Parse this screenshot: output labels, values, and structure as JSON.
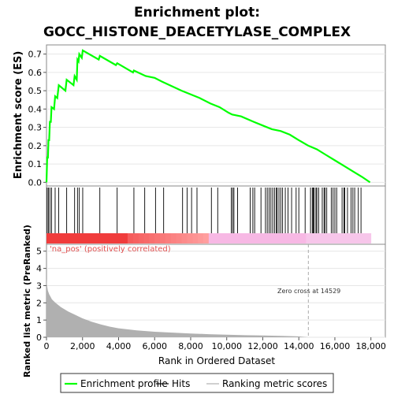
{
  "chart_data": {
    "type": "line",
    "title_line1": "Enrichment plot:",
    "title_line2": "GOCC_HISTONE_DEACETYLASE_COMPLEX",
    "panels": {
      "es": {
        "ylabel": "Enrichment score (ES)",
        "ylim": [
          -0.02,
          0.75
        ],
        "yticks": [
          0.0,
          0.1,
          0.2,
          0.3,
          0.4,
          0.5,
          0.6,
          0.7
        ],
        "ytick_labels": [
          "0.0",
          "0.1",
          "0.2",
          "0.3",
          "0.4",
          "0.5",
          "0.6",
          "0.7"
        ],
        "series_color": "#00ff00",
        "es_curve": [
          [
            0,
            0.0
          ],
          [
            40,
            0.14
          ],
          [
            80,
            0.13
          ],
          [
            110,
            0.23
          ],
          [
            150,
            0.23
          ],
          [
            190,
            0.33
          ],
          [
            240,
            0.33
          ],
          [
            280,
            0.41
          ],
          [
            420,
            0.4
          ],
          [
            480,
            0.47
          ],
          [
            600,
            0.46
          ],
          [
            680,
            0.53
          ],
          [
            1050,
            0.5
          ],
          [
            1120,
            0.56
          ],
          [
            1500,
            0.53
          ],
          [
            1560,
            0.58
          ],
          [
            1680,
            0.56
          ],
          [
            1720,
            0.67
          ],
          [
            1780,
            0.66
          ],
          [
            1820,
            0.7
          ],
          [
            1960,
            0.68
          ],
          [
            2010,
            0.72
          ],
          [
            2900,
            0.67
          ],
          [
            2960,
            0.69
          ],
          [
            3850,
            0.64
          ],
          [
            3920,
            0.65
          ],
          [
            4800,
            0.6
          ],
          [
            4850,
            0.61
          ],
          [
            5500,
            0.58
          ],
          [
            6000,
            0.57
          ],
          [
            6400,
            0.55
          ],
          [
            7500,
            0.5
          ],
          [
            8500,
            0.46
          ],
          [
            9100,
            0.43
          ],
          [
            9600,
            0.41
          ],
          [
            10100,
            0.38
          ],
          [
            10300,
            0.37
          ],
          [
            10800,
            0.36
          ],
          [
            11500,
            0.33
          ],
          [
            12000,
            0.31
          ],
          [
            12500,
            0.29
          ],
          [
            13000,
            0.28
          ],
          [
            13500,
            0.26
          ],
          [
            14000,
            0.23
          ],
          [
            14529,
            0.2
          ],
          [
            15000,
            0.18
          ],
          [
            15500,
            0.15
          ],
          [
            16000,
            0.12
          ],
          [
            16500,
            0.09
          ],
          [
            17000,
            0.06
          ],
          [
            17500,
            0.03
          ],
          [
            17950,
            0.0
          ]
        ]
      },
      "hits": {
        "positions": [
          40,
          110,
          190,
          280,
          480,
          680,
          1120,
          1560,
          1720,
          1820,
          2010,
          2960,
          3920,
          4850,
          5450,
          6050,
          6500,
          7550,
          7800,
          8050,
          8350,
          9150,
          9500,
          10250,
          10330,
          10400,
          10600,
          11300,
          11450,
          11550,
          11900,
          12150,
          12250,
          12350,
          12450,
          12550,
          12650,
          12750,
          12800,
          12900,
          13000,
          13100,
          13250,
          13400,
          13600,
          13850,
          14000,
          14350,
          14650,
          14750,
          14800,
          14850,
          14950,
          15000,
          15100,
          15300,
          15400,
          15450,
          15550,
          15800,
          15900,
          16000,
          16100,
          16400,
          16500,
          16550,
          16700,
          16900,
          17000,
          17100,
          17300,
          17450
        ]
      },
      "metric": {
        "ylabel": "Ranked list metric (PreRanked)",
        "ylim": [
          0,
          5.4
        ],
        "yticks": [
          0,
          1,
          2,
          3,
          4,
          5
        ],
        "ytick_labels": [
          "0",
          "1",
          "2",
          "3",
          "4",
          "5"
        ],
        "fill_color": "#b0b0b0",
        "pos_label": "'na_pos' (positively correlated)",
        "zero_cross_label": "Zero cross at 14529",
        "zero_cross": 14529,
        "metric_curve": [
          [
            0,
            3.4
          ],
          [
            30,
            3.0
          ],
          [
            80,
            2.7
          ],
          [
            150,
            2.5
          ],
          [
            300,
            2.2
          ],
          [
            500,
            2.0
          ],
          [
            800,
            1.75
          ],
          [
            1200,
            1.5
          ],
          [
            1600,
            1.3
          ],
          [
            2000,
            1.1
          ],
          [
            2500,
            0.9
          ],
          [
            3000,
            0.75
          ],
          [
            3500,
            0.62
          ],
          [
            4000,
            0.52
          ],
          [
            5000,
            0.4
          ],
          [
            6000,
            0.32
          ],
          [
            7000,
            0.27
          ],
          [
            8000,
            0.22
          ],
          [
            9000,
            0.18
          ],
          [
            10000,
            0.15
          ],
          [
            11000,
            0.12
          ],
          [
            12000,
            0.1
          ],
          [
            13000,
            0.08
          ],
          [
            14000,
            0.05
          ],
          [
            14529,
            0.0
          ]
        ]
      }
    },
    "xlabel": "Rank in Ordered Dataset",
    "xlim": [
      0,
      18800
    ],
    "n_genes": 18000,
    "xticks": [
      0,
      2000,
      4000,
      6000,
      8000,
      10000,
      12000,
      14000,
      16000,
      18000
    ],
    "xtick_labels": [
      "0",
      "2,000",
      "4,000",
      "6,000",
      "8,000",
      "10,000",
      "12,000",
      "14,000",
      "16,000",
      "18,000"
    ],
    "legend": {
      "placement": "bottom",
      "items": [
        {
          "label": "Enrichment profile",
          "kind": "line",
          "color": "#00ff00"
        },
        {
          "label": "Hits",
          "kind": "line",
          "color": "#000000"
        },
        {
          "label": "Ranking metric scores",
          "kind": "line",
          "color": "#b0b0b0"
        }
      ]
    }
  }
}
